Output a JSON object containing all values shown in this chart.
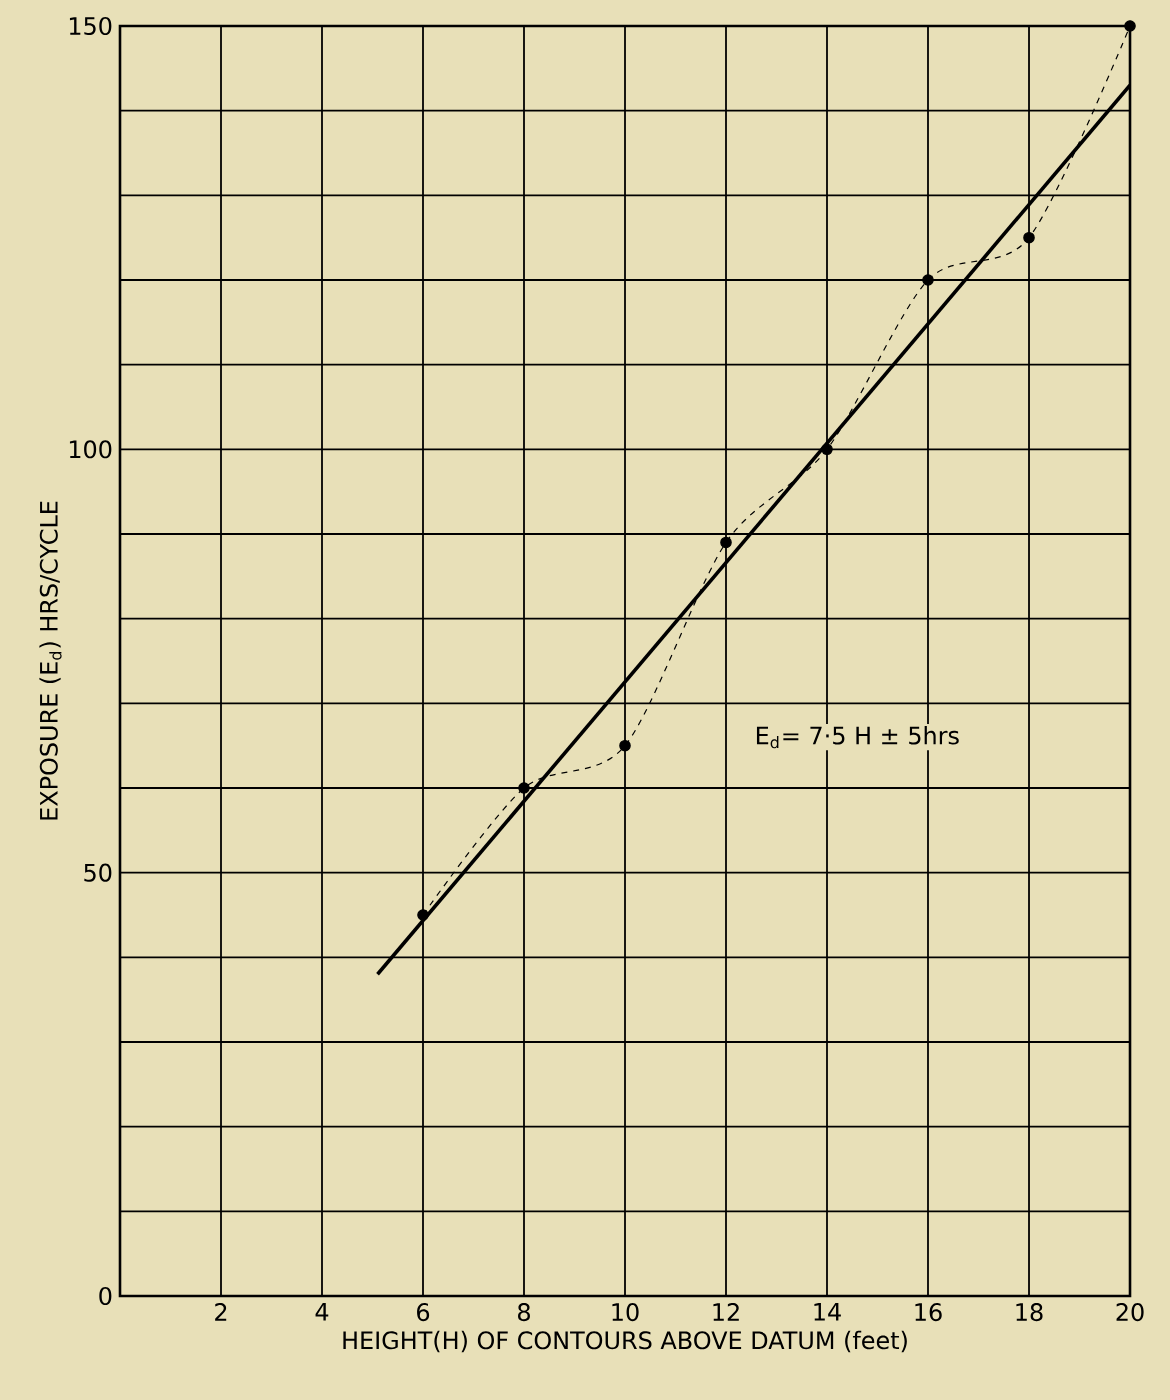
{
  "chart_data": {
    "type": "line",
    "xlabel": "HEIGHT(H) OF CONTOURS ABOVE DATUM (feet)",
    "ylabel": "EXPOSURE (E$_{d}$) HRS/CYCLE",
    "xlim": [
      0,
      20
    ],
    "ylim": [
      0,
      150
    ],
    "xticks": [
      2,
      4,
      6,
      8,
      10,
      12,
      14,
      16,
      18,
      20
    ],
    "yticks": [
      0,
      {
        "value": 10,
        "label": null
      },
      {
        "value": 20,
        "label": null
      },
      {
        "value": 30,
        "label": null
      },
      {
        "value": 40,
        "label": null
      },
      50,
      {
        "value": 60,
        "label": null
      },
      {
        "value": 70,
        "label": null
      },
      {
        "value": 80,
        "label": null
      },
      {
        "value": 90,
        "label": null
      },
      100,
      {
        "value": 110,
        "label": null
      },
      {
        "value": 120,
        "label": null
      },
      {
        "value": 130,
        "label": null
      },
      {
        "value": 140,
        "label": null
      },
      150
    ],
    "grid": true,
    "annotations": [
      "E$_{d}$= 7·5 H ± 5hrs"
    ],
    "series": [
      {
        "line_style": "dashed",
        "marker": "circle",
        "color": "#000000",
        "x": [
          6,
          8,
          10,
          12,
          14,
          16,
          18,
          20
        ],
        "values": [
          45,
          60,
          65,
          89,
          100,
          120,
          125,
          150
        ]
      },
      {
        "line_style": "solid",
        "marker": "none",
        "color": "#000000",
        "x": [
          5.1,
          20
        ],
        "values": [
          38,
          143
        ]
      }
    ]
  }
}
